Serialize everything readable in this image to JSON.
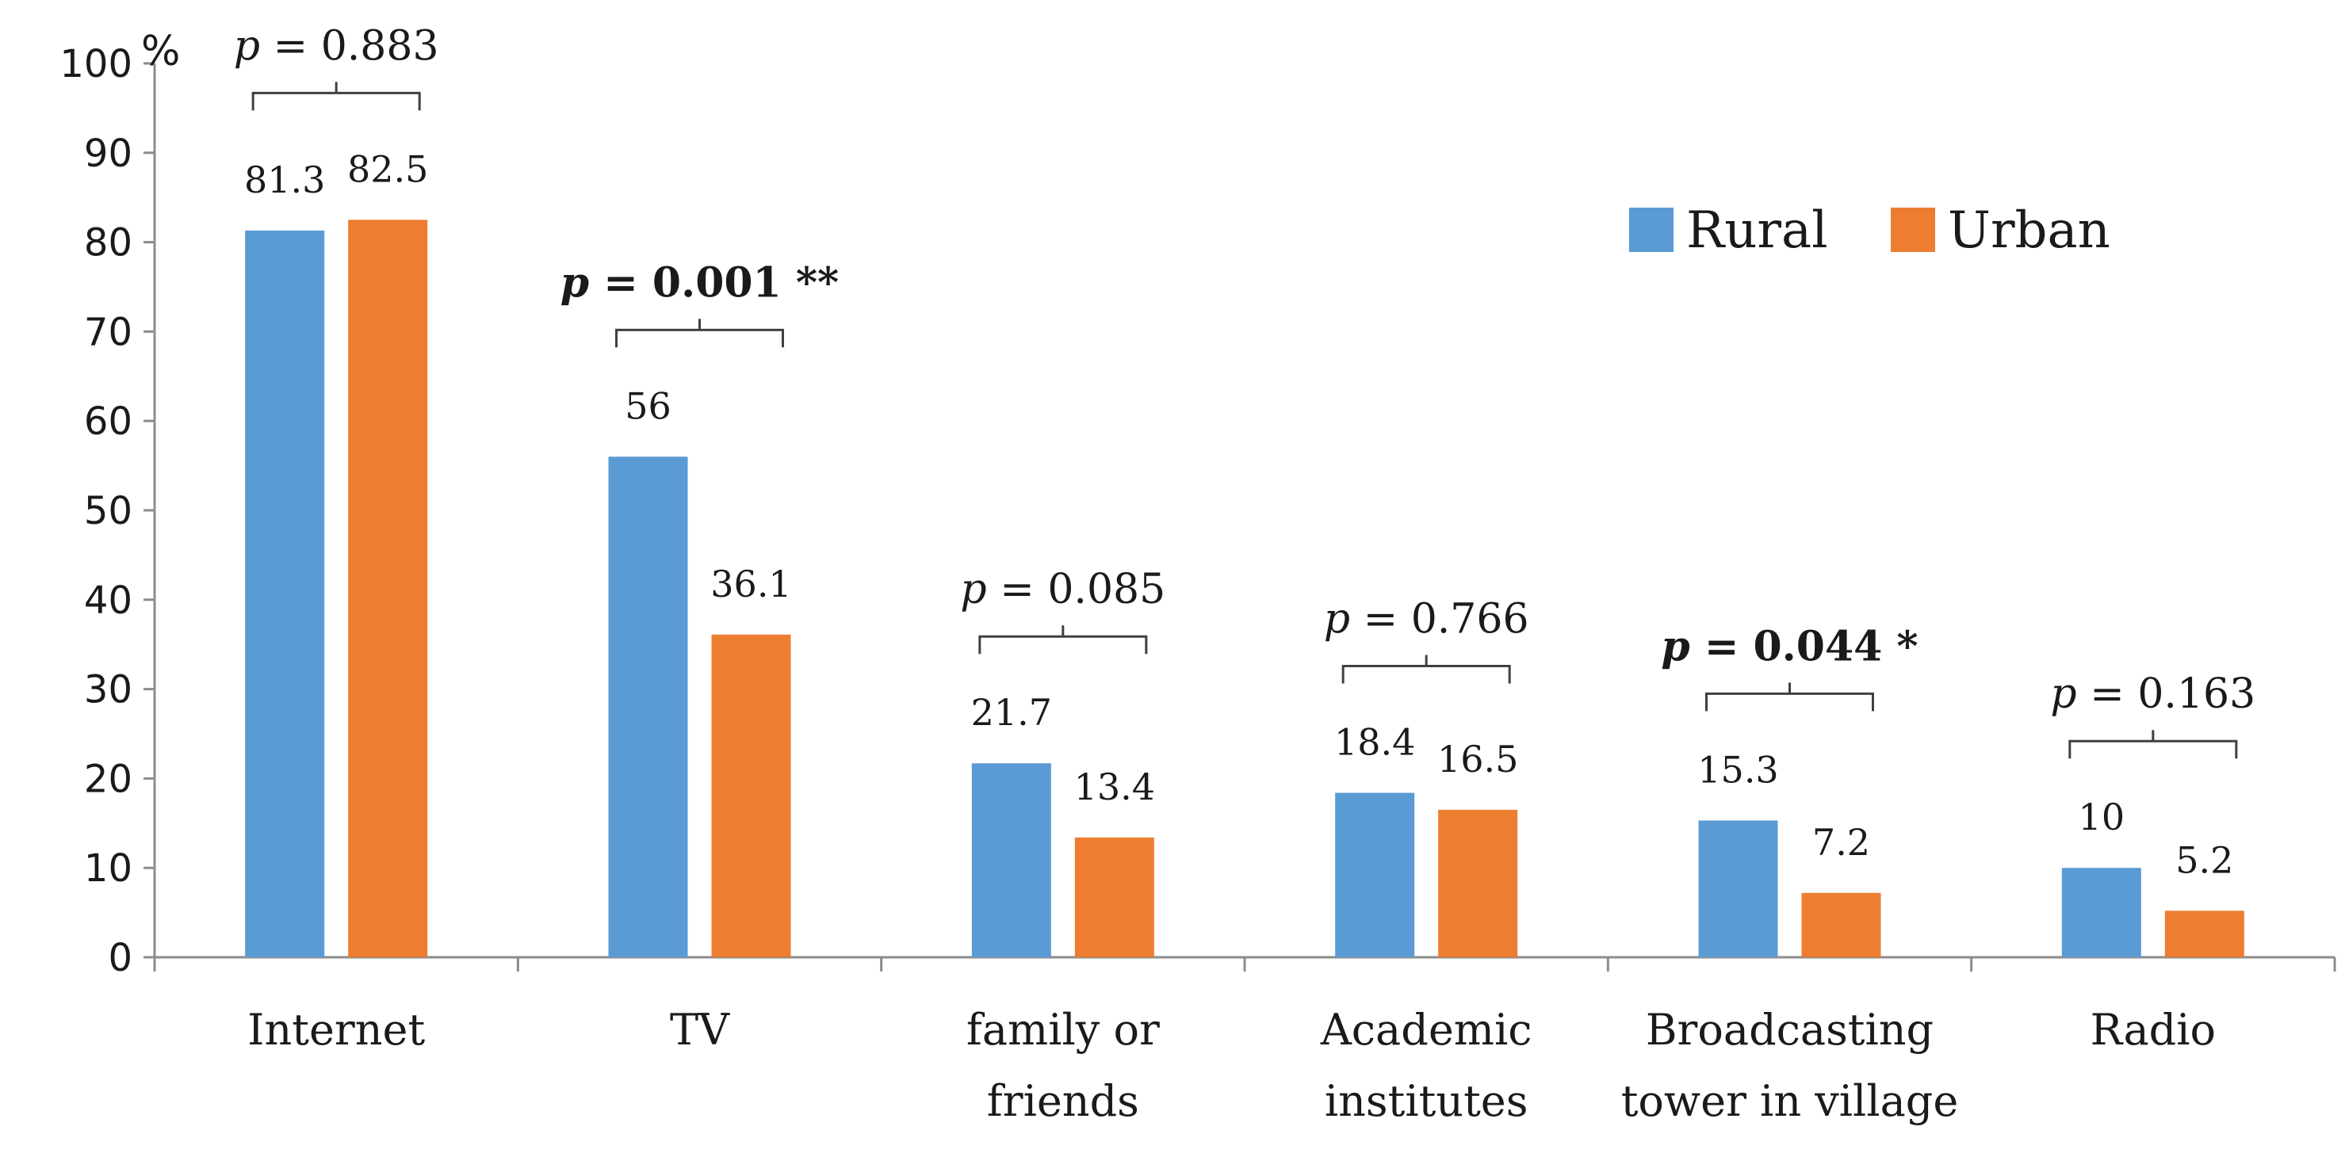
{
  "chart_data": {
    "type": "bar",
    "unit_label": "%",
    "categories": [
      [
        "Internet"
      ],
      [
        "TV"
      ],
      [
        "family or",
        "friends"
      ],
      [
        "Academic",
        "institutes"
      ],
      [
        "Broadcasting",
        "tower in village"
      ],
      [
        "Radio"
      ]
    ],
    "series": [
      {
        "name": "Rural",
        "color": "#5b9bd5",
        "values": [
          81.3,
          56,
          21.7,
          18.4,
          15.3,
          10
        ]
      },
      {
        "name": "Urban",
        "color": "#ed7d31",
        "values": [
          82.5,
          36.1,
          13.4,
          16.5,
          7.2,
          5.2
        ]
      }
    ],
    "value_labels": {
      "Rural": [
        "81.3",
        "56",
        "21.7",
        "18.4",
        "15.3",
        "10"
      ],
      "Urban": [
        "82.5",
        "36.1",
        "13.4",
        "16.5",
        "7.2",
        "5.2"
      ]
    },
    "p_values": [
      {
        "prefix": "p",
        "text": " = 0.883",
        "significant": false
      },
      {
        "prefix": "p",
        "text": " = 0.001 **",
        "significant": true
      },
      {
        "prefix": "p",
        "text": " = 0.085",
        "significant": false
      },
      {
        "prefix": "p",
        "text": " = 0.766",
        "significant": false
      },
      {
        "prefix": "p",
        "text": " = 0.044 *",
        "significant": true
      },
      {
        "prefix": "p",
        "text": " = 0.163",
        "significant": false
      }
    ],
    "ylim": [
      0,
      100
    ],
    "yticks": [
      0,
      10,
      20,
      30,
      40,
      50,
      60,
      70,
      80,
      90,
      100
    ],
    "legend_position": "top-right",
    "grid": false
  }
}
